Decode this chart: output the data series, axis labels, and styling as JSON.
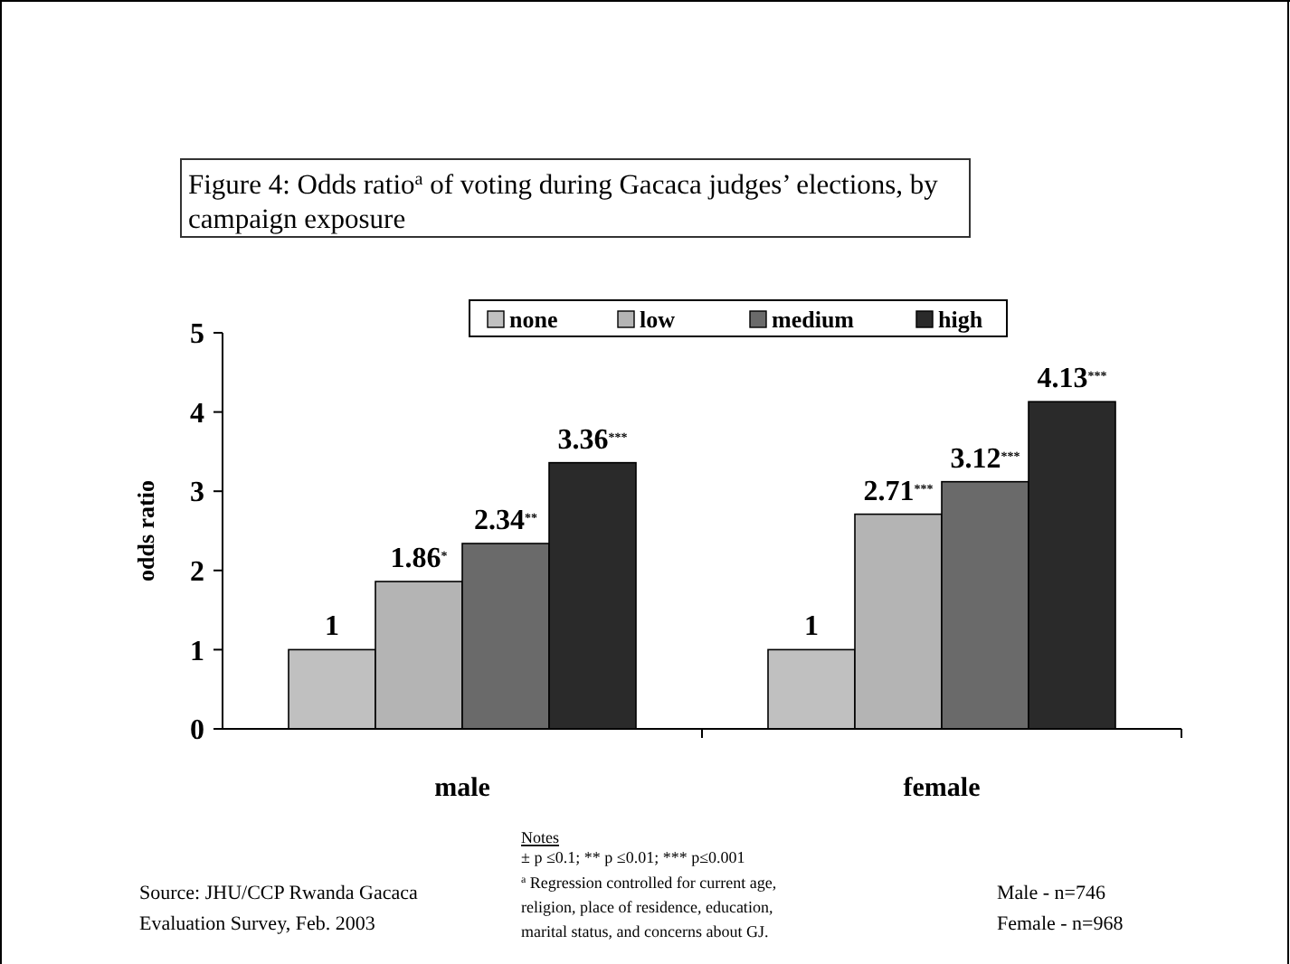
{
  "chart_data": {
    "type": "bar",
    "title": "Figure 4: Odds ratio$^{a}$ of voting during Gacaca judges’ elections, by campaign exposure",
    "ylabel": "odds ratio",
    "categories": [
      "male",
      "female"
    ],
    "ylim": [
      0,
      5
    ],
    "yticks": [
      0,
      1,
      2,
      3,
      4,
      5
    ],
    "grid": false,
    "legend": "top",
    "series": [
      {
        "name": "none",
        "color": "#c0c0c0",
        "values": [
          1,
          1
        ],
        "value_labels": [
          "1",
          "1"
        ]
      },
      {
        "name": "low",
        "color": "#b4b4b4",
        "values": [
          1.86,
          2.71
        ],
        "value_labels": [
          "1.86$^{*}$",
          "2.71$^{***}$"
        ]
      },
      {
        "name": "medium",
        "color": "#6a6a6a",
        "values": [
          2.34,
          3.12
        ],
        "value_labels": [
          "2.34$^{**}$",
          "3.12$^{***}$"
        ]
      },
      {
        "name": "high",
        "color": "#2a2a2a",
        "values": [
          3.36,
          4.13
        ],
        "value_labels": [
          "3.36$^{***}$",
          "4.13$^{***}$"
        ]
      }
    ],
    "annotations": [
      "Notes",
      "± p ≤0.1; ** p ≤0.01; *** p≤0.001",
      "$^{a}$ Regression controlled for current age, religion, place of residence, education, marital status, and concerns about GJ.",
      "Source: JHU/CCP Rwanda Gacaca Evaluation Survey, Feb. 2003",
      "Male - n=746",
      "Female - n=968"
    ]
  }
}
